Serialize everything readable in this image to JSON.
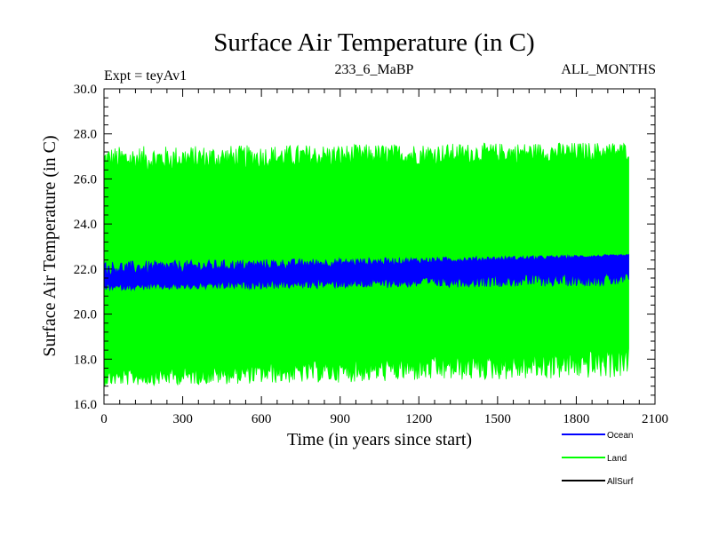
{
  "chart_data": {
    "type": "line",
    "title": "Surface Air Temperature (in C)",
    "subtitle_left": "Expt = teyAv1",
    "subtitle_center": "233_6_MaBP",
    "subtitle_right": "ALL_MONTHS",
    "xlabel": "Time (in years since start)",
    "ylabel": "Surface Air Temperature (in C)",
    "xlim": [
      0,
      2100
    ],
    "ylim": [
      16.0,
      30.0
    ],
    "x_ticks": [
      0,
      300,
      600,
      900,
      1200,
      1500,
      1800,
      2100
    ],
    "x_tick_labels": [
      "0",
      "300",
      "600",
      "900",
      "1200",
      "1500",
      "1800",
      "2100"
    ],
    "y_ticks": [
      16,
      18,
      20,
      22,
      24,
      26,
      28,
      30
    ],
    "y_tick_labels": [
      "16.0",
      "18.0",
      "20.0",
      "22.0",
      "24.0",
      "26.0",
      "28.0",
      "30.0"
    ],
    "x_minor_step": 60,
    "y_minor_step": 0.4,
    "grid": false,
    "legend_position": "bottom-right",
    "series": [
      {
        "name": "Land",
        "color": "#00ff00",
        "x_range": [
          0,
          2000
        ],
        "kind": "monthly-envelope",
        "start_low": 17.2,
        "start_high": 26.8,
        "end_low": 17.9,
        "end_high": 27.2,
        "min": 16.4,
        "max": 28.1
      },
      {
        "name": "Ocean",
        "color": "#0000ff",
        "x_range": [
          0,
          2000
        ],
        "kind": "monthly-envelope",
        "start_low": 21.2,
        "start_high": 22.0,
        "end_low": 21.6,
        "end_high": 22.6,
        "min": 20.9,
        "max": 22.7
      },
      {
        "name": "AllSurf",
        "color": "#000000",
        "x_range": [
          0,
          2000
        ],
        "kind": "hidden-behind-other-series",
        "values": []
      }
    ],
    "legend_entries": [
      {
        "label": "Ocean",
        "color": "#0000ff"
      },
      {
        "label": "Land",
        "color": "#00ff00"
      },
      {
        "label": "AllSurf",
        "color": "#000000"
      }
    ]
  }
}
